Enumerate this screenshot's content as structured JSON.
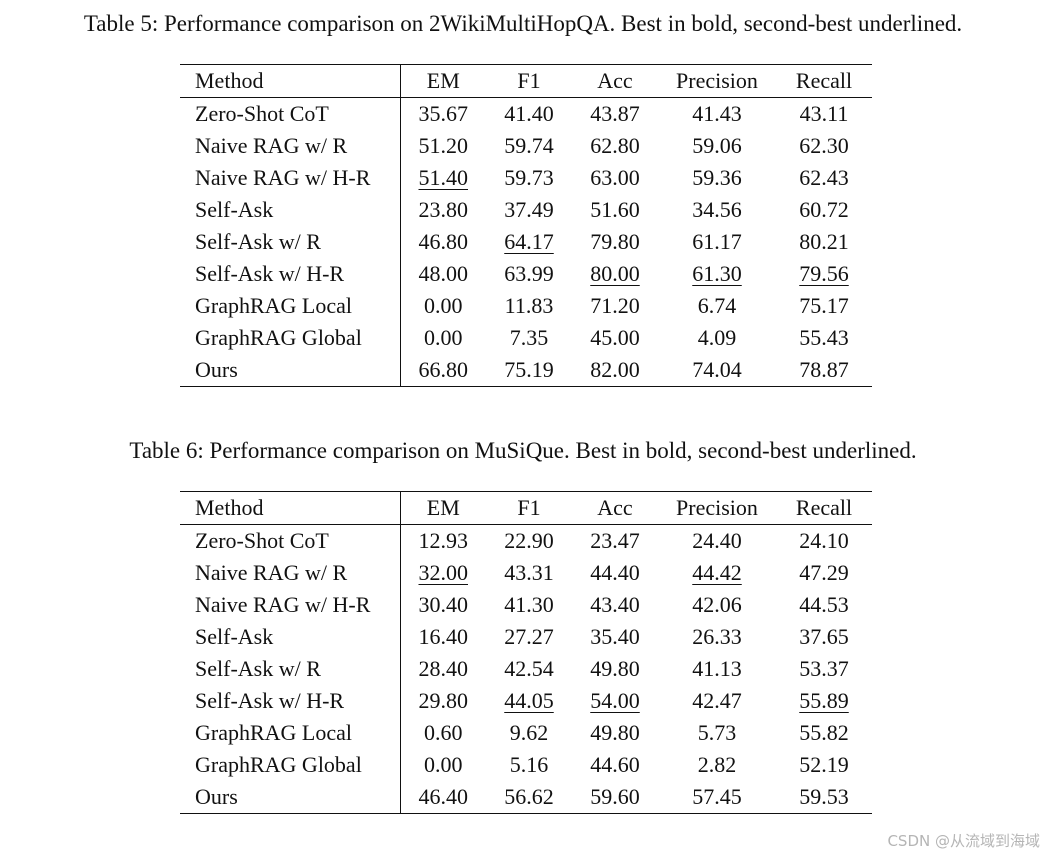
{
  "columns": [
    "Method",
    "EM",
    "F1",
    "Acc",
    "Precision",
    "Recall"
  ],
  "tables": [
    {
      "caption": "Table 5: Performance comparison on 2WikiMultiHopQA. Best in bold, second-best underlined.",
      "rows": [
        {
          "method": "Zero-Shot CoT",
          "cells": [
            {
              "v": "35.67"
            },
            {
              "v": "41.40"
            },
            {
              "v": "43.87"
            },
            {
              "v": "41.43"
            },
            {
              "v": "43.11"
            }
          ]
        },
        {
          "method": "Naive RAG w/ R",
          "cells": [
            {
              "v": "51.20"
            },
            {
              "v": "59.74"
            },
            {
              "v": "62.80"
            },
            {
              "v": "59.06"
            },
            {
              "v": "62.30"
            }
          ]
        },
        {
          "method": "Naive RAG w/ H-R",
          "cells": [
            {
              "v": "51.40",
              "s": "second"
            },
            {
              "v": "59.73"
            },
            {
              "v": "63.00"
            },
            {
              "v": "59.36"
            },
            {
              "v": "62.43"
            }
          ]
        },
        {
          "method": "Self-Ask",
          "cells": [
            {
              "v": "23.80"
            },
            {
              "v": "37.49"
            },
            {
              "v": "51.60"
            },
            {
              "v": "34.56"
            },
            {
              "v": "60.72"
            }
          ]
        },
        {
          "method": "Self-Ask w/ R",
          "cells": [
            {
              "v": "46.80"
            },
            {
              "v": "64.17",
              "s": "second"
            },
            {
              "v": "79.80"
            },
            {
              "v": "61.17"
            },
            {
              "v": "80.21",
              "s": "best"
            }
          ]
        },
        {
          "method": "Self-Ask w/ H-R",
          "cells": [
            {
              "v": "48.00"
            },
            {
              "v": "63.99"
            },
            {
              "v": "80.00",
              "s": "second"
            },
            {
              "v": "61.30",
              "s": "second"
            },
            {
              "v": "79.56",
              "s": "second"
            }
          ]
        },
        {
          "method": "GraphRAG Local",
          "cells": [
            {
              "v": "0.00"
            },
            {
              "v": "11.83"
            },
            {
              "v": "71.20"
            },
            {
              "v": "6.74"
            },
            {
              "v": "75.17"
            }
          ]
        },
        {
          "method": "GraphRAG Global",
          "cells": [
            {
              "v": "0.00"
            },
            {
              "v": "7.35"
            },
            {
              "v": "45.00"
            },
            {
              "v": "4.09"
            },
            {
              "v": "55.43"
            }
          ]
        },
        {
          "method": "Ours",
          "cells": [
            {
              "v": "66.80",
              "s": "best"
            },
            {
              "v": "75.19",
              "s": "best"
            },
            {
              "v": "82.00",
              "s": "best"
            },
            {
              "v": "74.04",
              "s": "best"
            },
            {
              "v": "78.87"
            }
          ]
        }
      ]
    },
    {
      "caption": "Table 6: Performance comparison on MuSiQue. Best in bold, second-best underlined.",
      "rows": [
        {
          "method": "Zero-Shot CoT",
          "cells": [
            {
              "v": "12.93"
            },
            {
              "v": "22.90"
            },
            {
              "v": "23.47"
            },
            {
              "v": "24.40"
            },
            {
              "v": "24.10"
            }
          ]
        },
        {
          "method": "Naive RAG w/ R",
          "cells": [
            {
              "v": "32.00",
              "s": "second"
            },
            {
              "v": "43.31"
            },
            {
              "v": "44.40"
            },
            {
              "v": "44.42",
              "s": "second"
            },
            {
              "v": "47.29"
            }
          ]
        },
        {
          "method": "Naive RAG w/ H-R",
          "cells": [
            {
              "v": "30.40"
            },
            {
              "v": "41.30"
            },
            {
              "v": "43.40"
            },
            {
              "v": "42.06"
            },
            {
              "v": "44.53"
            }
          ]
        },
        {
          "method": "Self-Ask",
          "cells": [
            {
              "v": "16.40"
            },
            {
              "v": "27.27"
            },
            {
              "v": "35.40"
            },
            {
              "v": "26.33"
            },
            {
              "v": "37.65"
            }
          ]
        },
        {
          "method": "Self-Ask w/ R",
          "cells": [
            {
              "v": "28.40"
            },
            {
              "v": "42.54"
            },
            {
              "v": "49.80"
            },
            {
              "v": "41.13"
            },
            {
              "v": "53.37"
            }
          ]
        },
        {
          "method": "Self-Ask w/ H-R",
          "cells": [
            {
              "v": "29.80"
            },
            {
              "v": "44.05",
              "s": "second"
            },
            {
              "v": "54.00",
              "s": "second"
            },
            {
              "v": "42.47"
            },
            {
              "v": "55.89",
              "s": "second"
            }
          ]
        },
        {
          "method": "GraphRAG Local",
          "cells": [
            {
              "v": "0.60"
            },
            {
              "v": "9.62"
            },
            {
              "v": "49.80"
            },
            {
              "v": "5.73"
            },
            {
              "v": "55.82"
            }
          ]
        },
        {
          "method": "GraphRAG Global",
          "cells": [
            {
              "v": "0.00"
            },
            {
              "v": "5.16"
            },
            {
              "v": "44.60"
            },
            {
              "v": "2.82"
            },
            {
              "v": "52.19"
            }
          ]
        },
        {
          "method": "Ours",
          "cells": [
            {
              "v": "46.40",
              "s": "best"
            },
            {
              "v": "56.62",
              "s": "best"
            },
            {
              "v": "59.60",
              "s": "best"
            },
            {
              "v": "57.45",
              "s": "best"
            },
            {
              "v": "59.53",
              "s": "best"
            }
          ]
        }
      ]
    }
  ],
  "watermark": "CSDN @从流域到海域"
}
